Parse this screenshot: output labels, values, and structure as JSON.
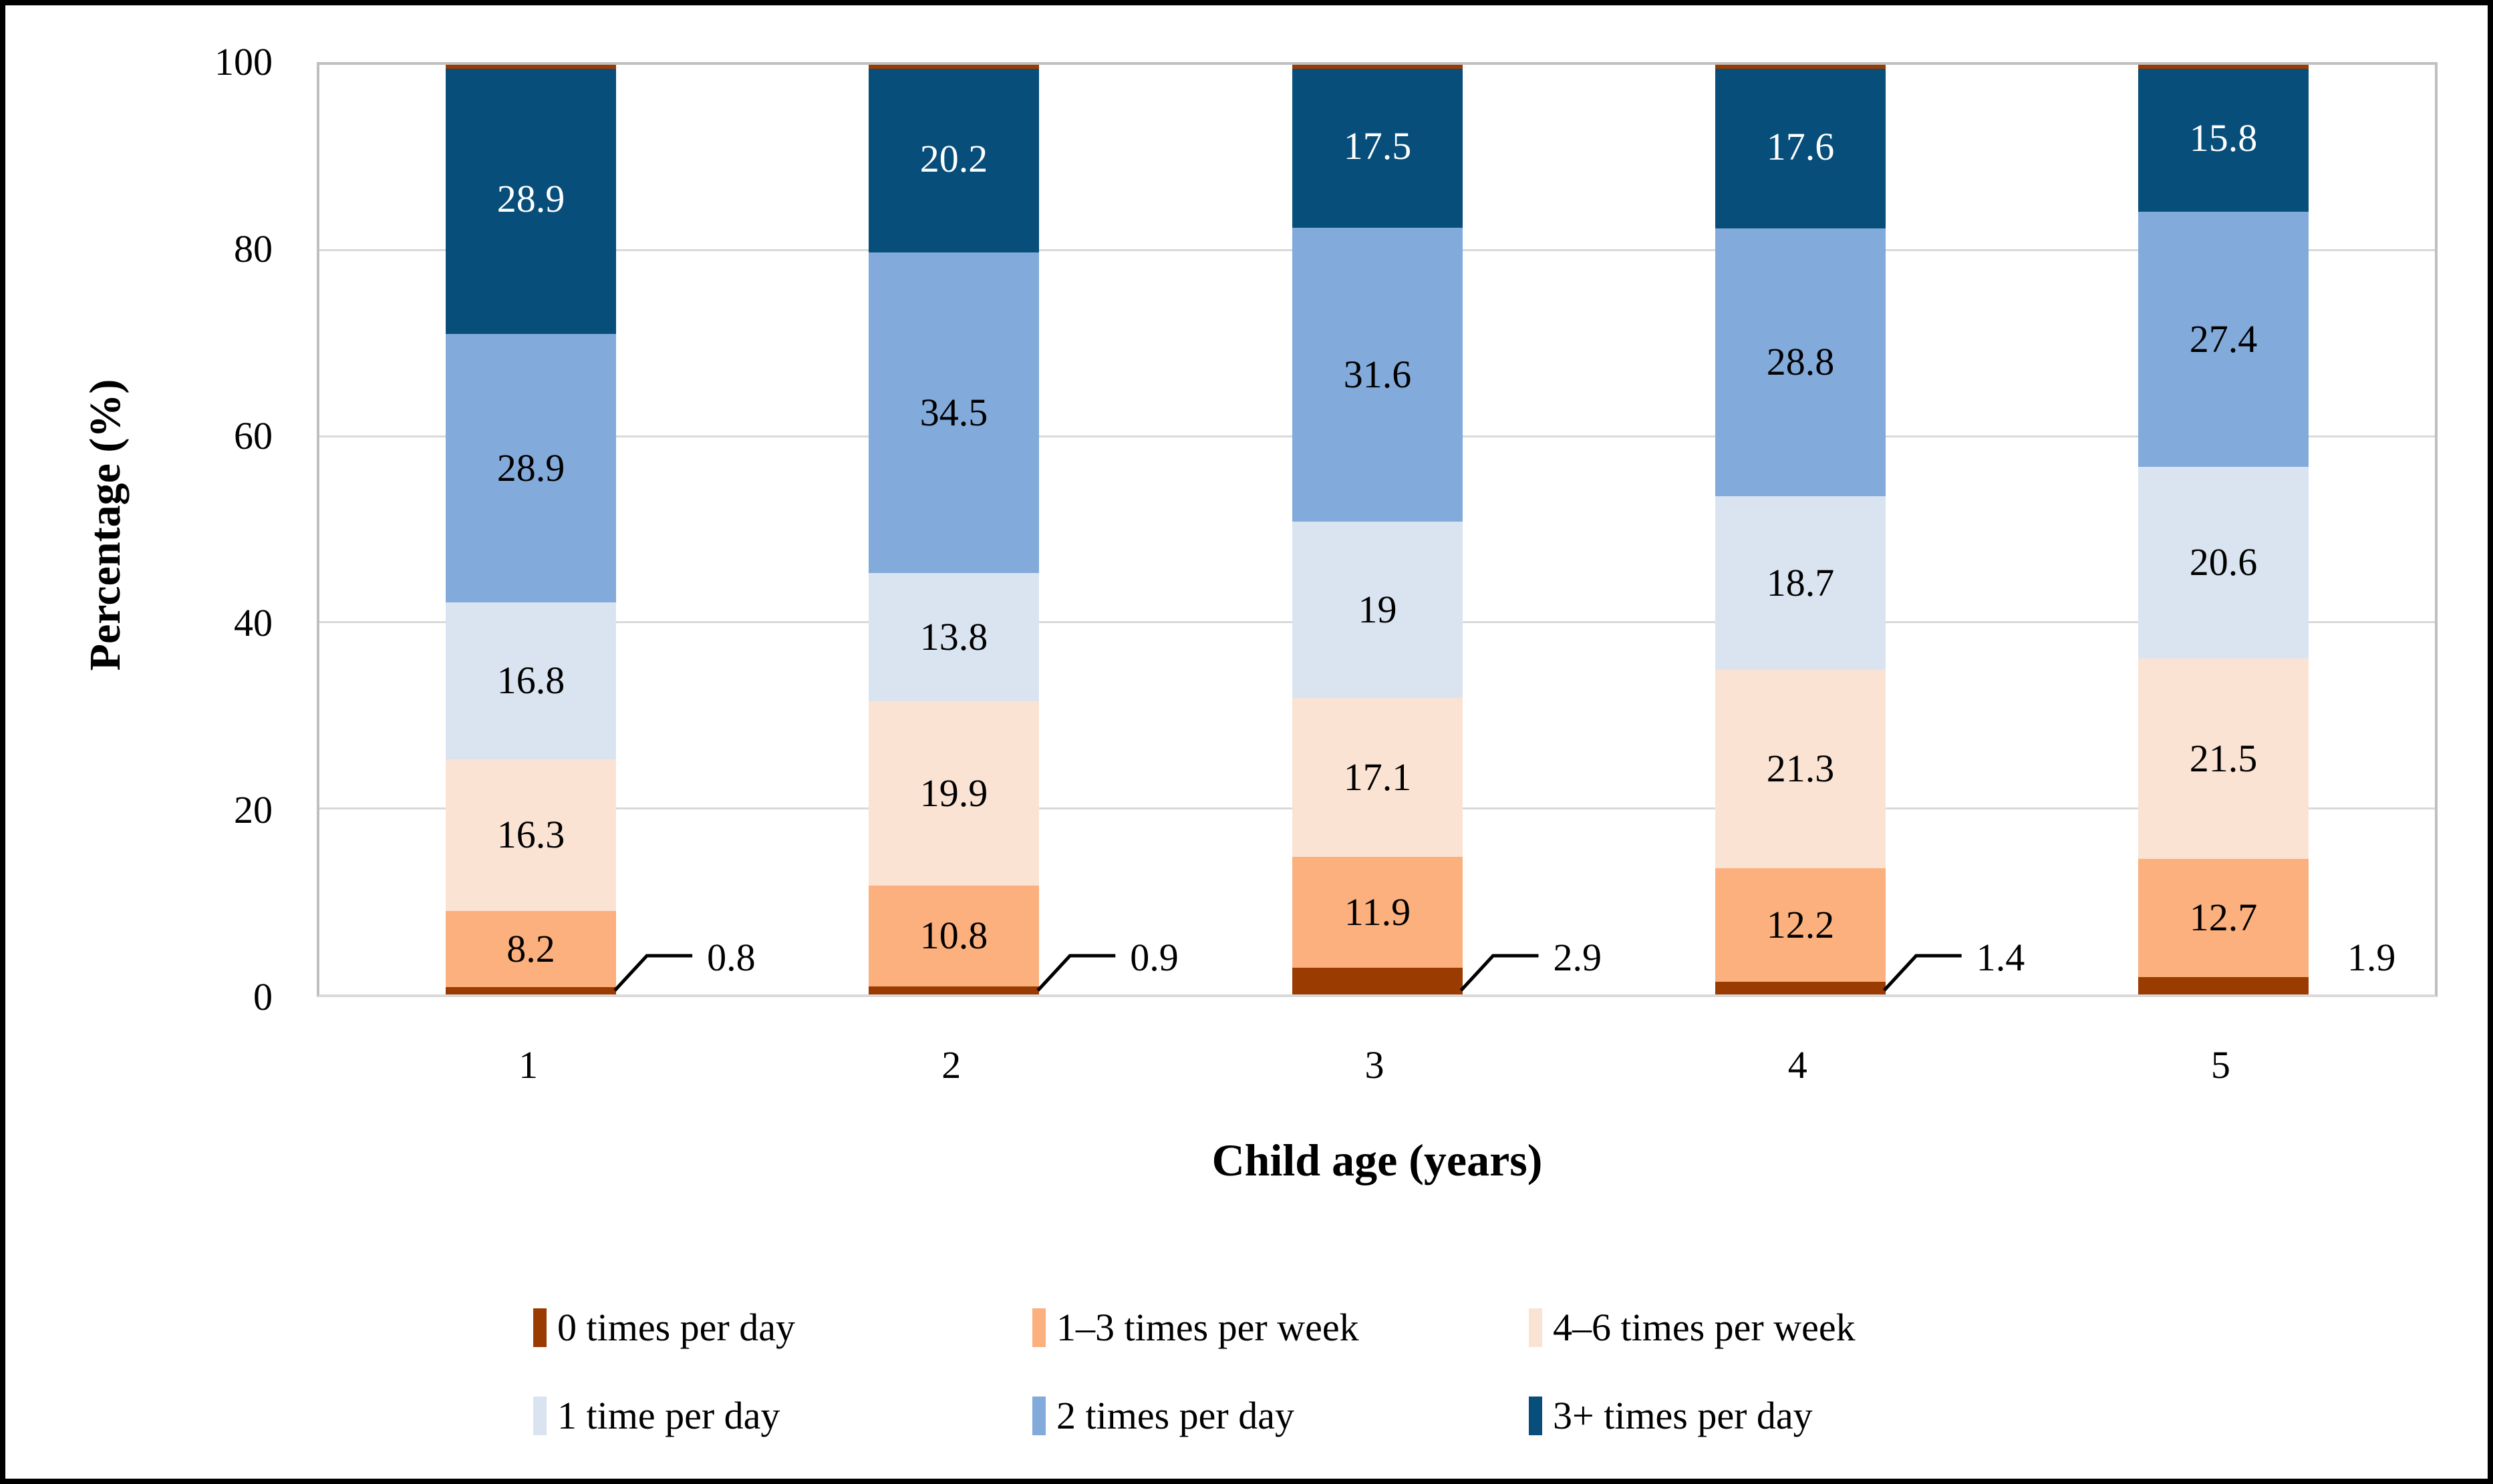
{
  "chart_data": {
    "type": "bar",
    "stacked": true,
    "title": "",
    "xlabel": "Child age (years)",
    "ylabel": "Percentage (%)",
    "ylim": [
      0,
      100
    ],
    "y_ticks": [
      0,
      20,
      40,
      60,
      80,
      100
    ],
    "grid": true,
    "legend_position": "bottom",
    "categories": [
      "1",
      "2",
      "3",
      "4",
      "5"
    ],
    "series": [
      {
        "name": "0 times per day",
        "color": "#9A3B02",
        "values": [
          0.8,
          0.9,
          2.9,
          1.4,
          1.9
        ],
        "value_labels": "callout"
      },
      {
        "name": "1–3 times per week",
        "color": "#FBB07D",
        "values": [
          8.2,
          10.8,
          11.9,
          12.2,
          12.7
        ],
        "label_color": "#000000"
      },
      {
        "name": "4–6 times per week",
        "color": "#FBE3D3",
        "values": [
          16.3,
          19.9,
          17.1,
          21.3,
          21.5
        ],
        "label_color": "#000000"
      },
      {
        "name": "1 time per day",
        "color": "#DAE4F1",
        "values": [
          16.8,
          13.8,
          19,
          18.7,
          20.6
        ],
        "label_color": "#000000"
      },
      {
        "name": "2 times per day",
        "color": "#82AADB",
        "values": [
          28.9,
          34.5,
          31.6,
          28.8,
          27.4
        ],
        "label_color": "#000000"
      },
      {
        "name": "3+ times per day",
        "color": "#074E7B",
        "values": [
          28.9,
          20.2,
          17.5,
          17.6,
          15.8
        ],
        "label_color": "#FFFFFF"
      }
    ],
    "callouts": {
      "series": "0 times per day",
      "labels": [
        "0.8",
        "0.9",
        "2.9",
        "1.4",
        "1.9"
      ],
      "has_leader_line": [
        true,
        true,
        true,
        true,
        false
      ]
    },
    "colors": {
      "gridline": "#D9D9D9",
      "plot_border": "#BFBFBF",
      "axis_line": "#D9D9D9",
      "figure_border": "#000000",
      "bar_top_cap": "#9A3B02",
      "background": "#FFFFFF"
    }
  }
}
